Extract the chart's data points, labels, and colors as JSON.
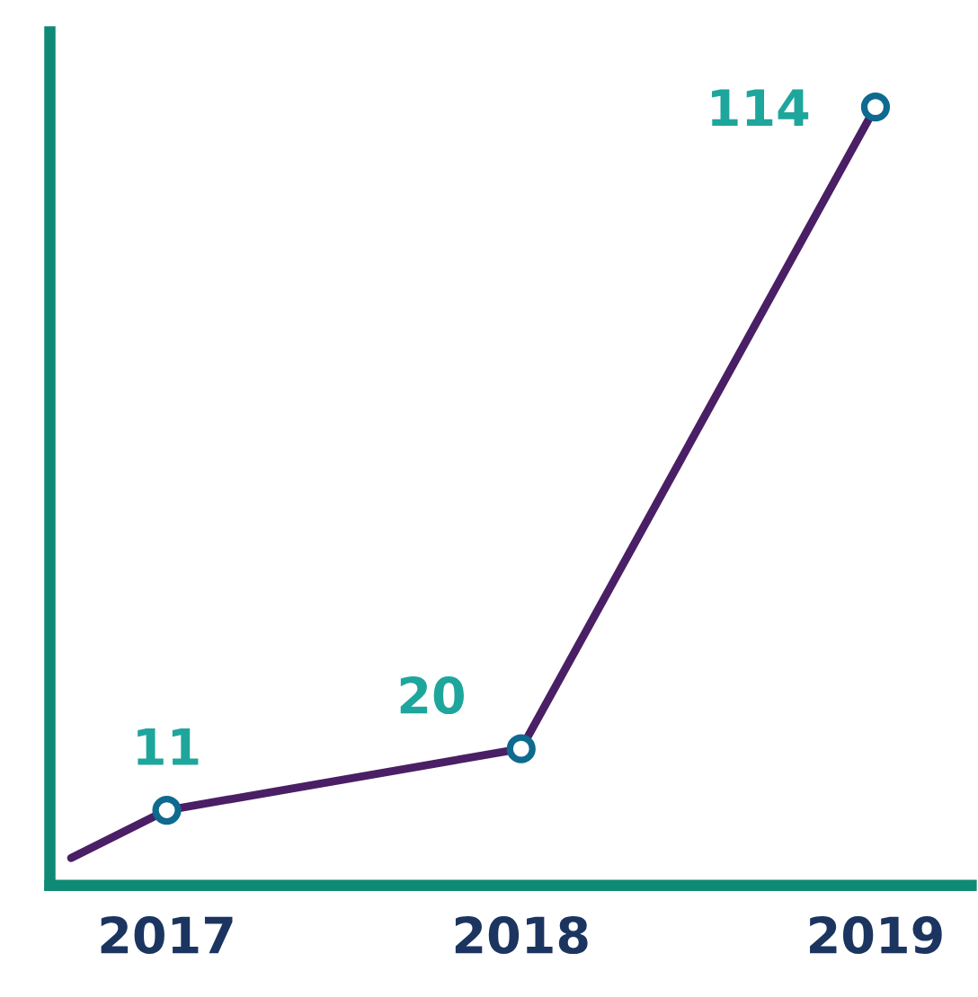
{
  "chart_data": {
    "type": "line",
    "x": [
      2016.73,
      2017,
      2018,
      2019
    ],
    "values": [
      4,
      11,
      20,
      114
    ],
    "value_labels": [
      null,
      "11",
      "20",
      "114"
    ],
    "color": "#4a1f65",
    "marker": "circle",
    "line_style": "solid",
    "xlim": [
      2016.67,
      2019.27
    ],
    "ylim": [
      0,
      125
    ],
    "xticks": [
      2017,
      2018,
      2019
    ],
    "tick_labels": "x",
    "grid": false,
    "legend": false
  }
}
